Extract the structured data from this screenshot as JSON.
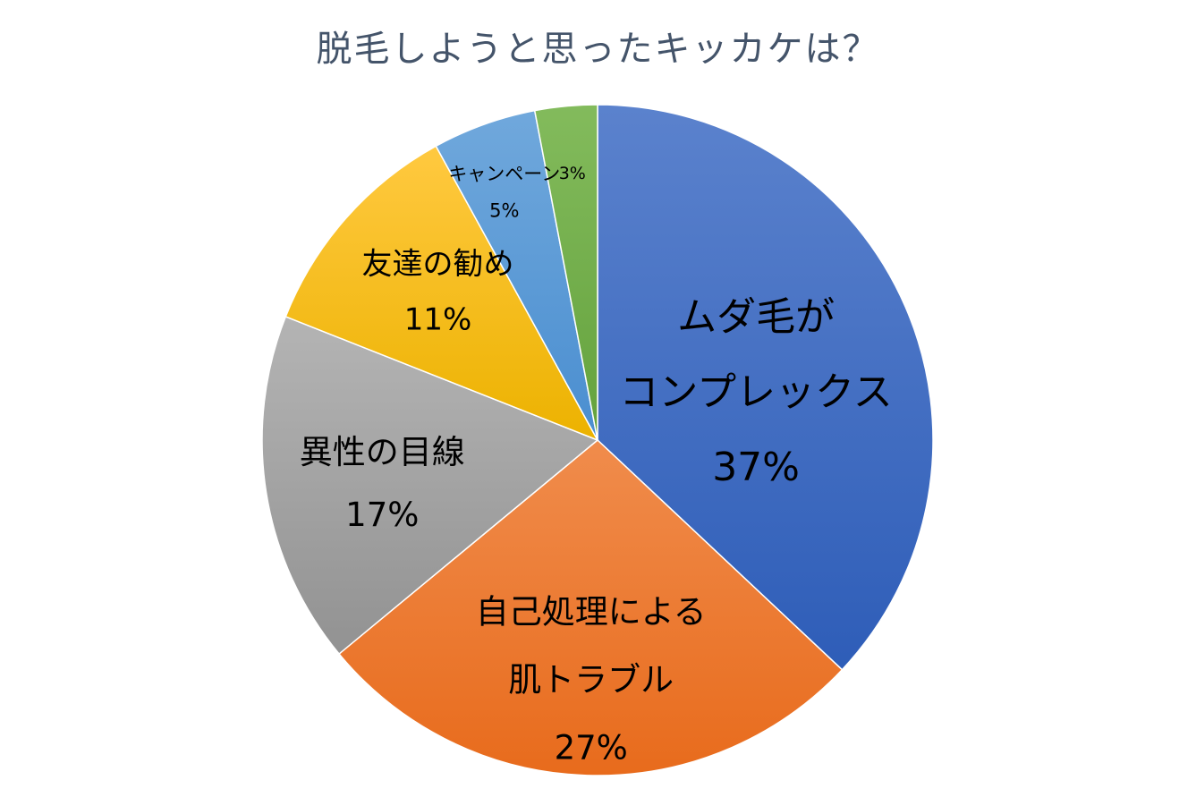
{
  "title": "脱毛しようと思ったキッカケは？",
  "chart_data": {
    "type": "pie",
    "title": "脱毛しようと思ったキッカケは？",
    "start_angle_deg": 0,
    "direction": "clockwise",
    "slices": [
      {
        "label_lines": [
          "ムダ毛が",
          "コンプレックス"
        ],
        "value": 37,
        "display": "37%",
        "color": "#4472c4",
        "color_light": "#5b82cd",
        "color_dark": "#2e5db8"
      },
      {
        "label_lines": [
          "自己処理による",
          "肌トラブル"
        ],
        "value": 27,
        "display": "27%",
        "color": "#ed7d31",
        "color_light": "#f08c4c",
        "color_dark": "#e86b1c"
      },
      {
        "label_lines": [
          "異性の目線"
        ],
        "value": 17,
        "display": "17%",
        "color": "#a5a5a5",
        "color_light": "#b4b4b4",
        "color_dark": "#929292"
      },
      {
        "label_lines": [
          "友達の勧め"
        ],
        "value": 11,
        "display": "11%",
        "color": "#ffc000",
        "color_light": "#ffc940",
        "color_dark": "#ecb200"
      },
      {
        "label_lines": [
          "キャンペーン"
        ],
        "value": 5,
        "display": "5%",
        "color": "#5b9bd5",
        "color_light": "#70a8dc",
        "color_dark": "#4a8ed0"
      },
      {
        "label_lines": [
          ""
        ],
        "value": 3,
        "display": "3%",
        "color": "#70ad47",
        "color_light": "#83bb5c",
        "color_dark": "#64a23d"
      }
    ],
    "legend": "none"
  }
}
